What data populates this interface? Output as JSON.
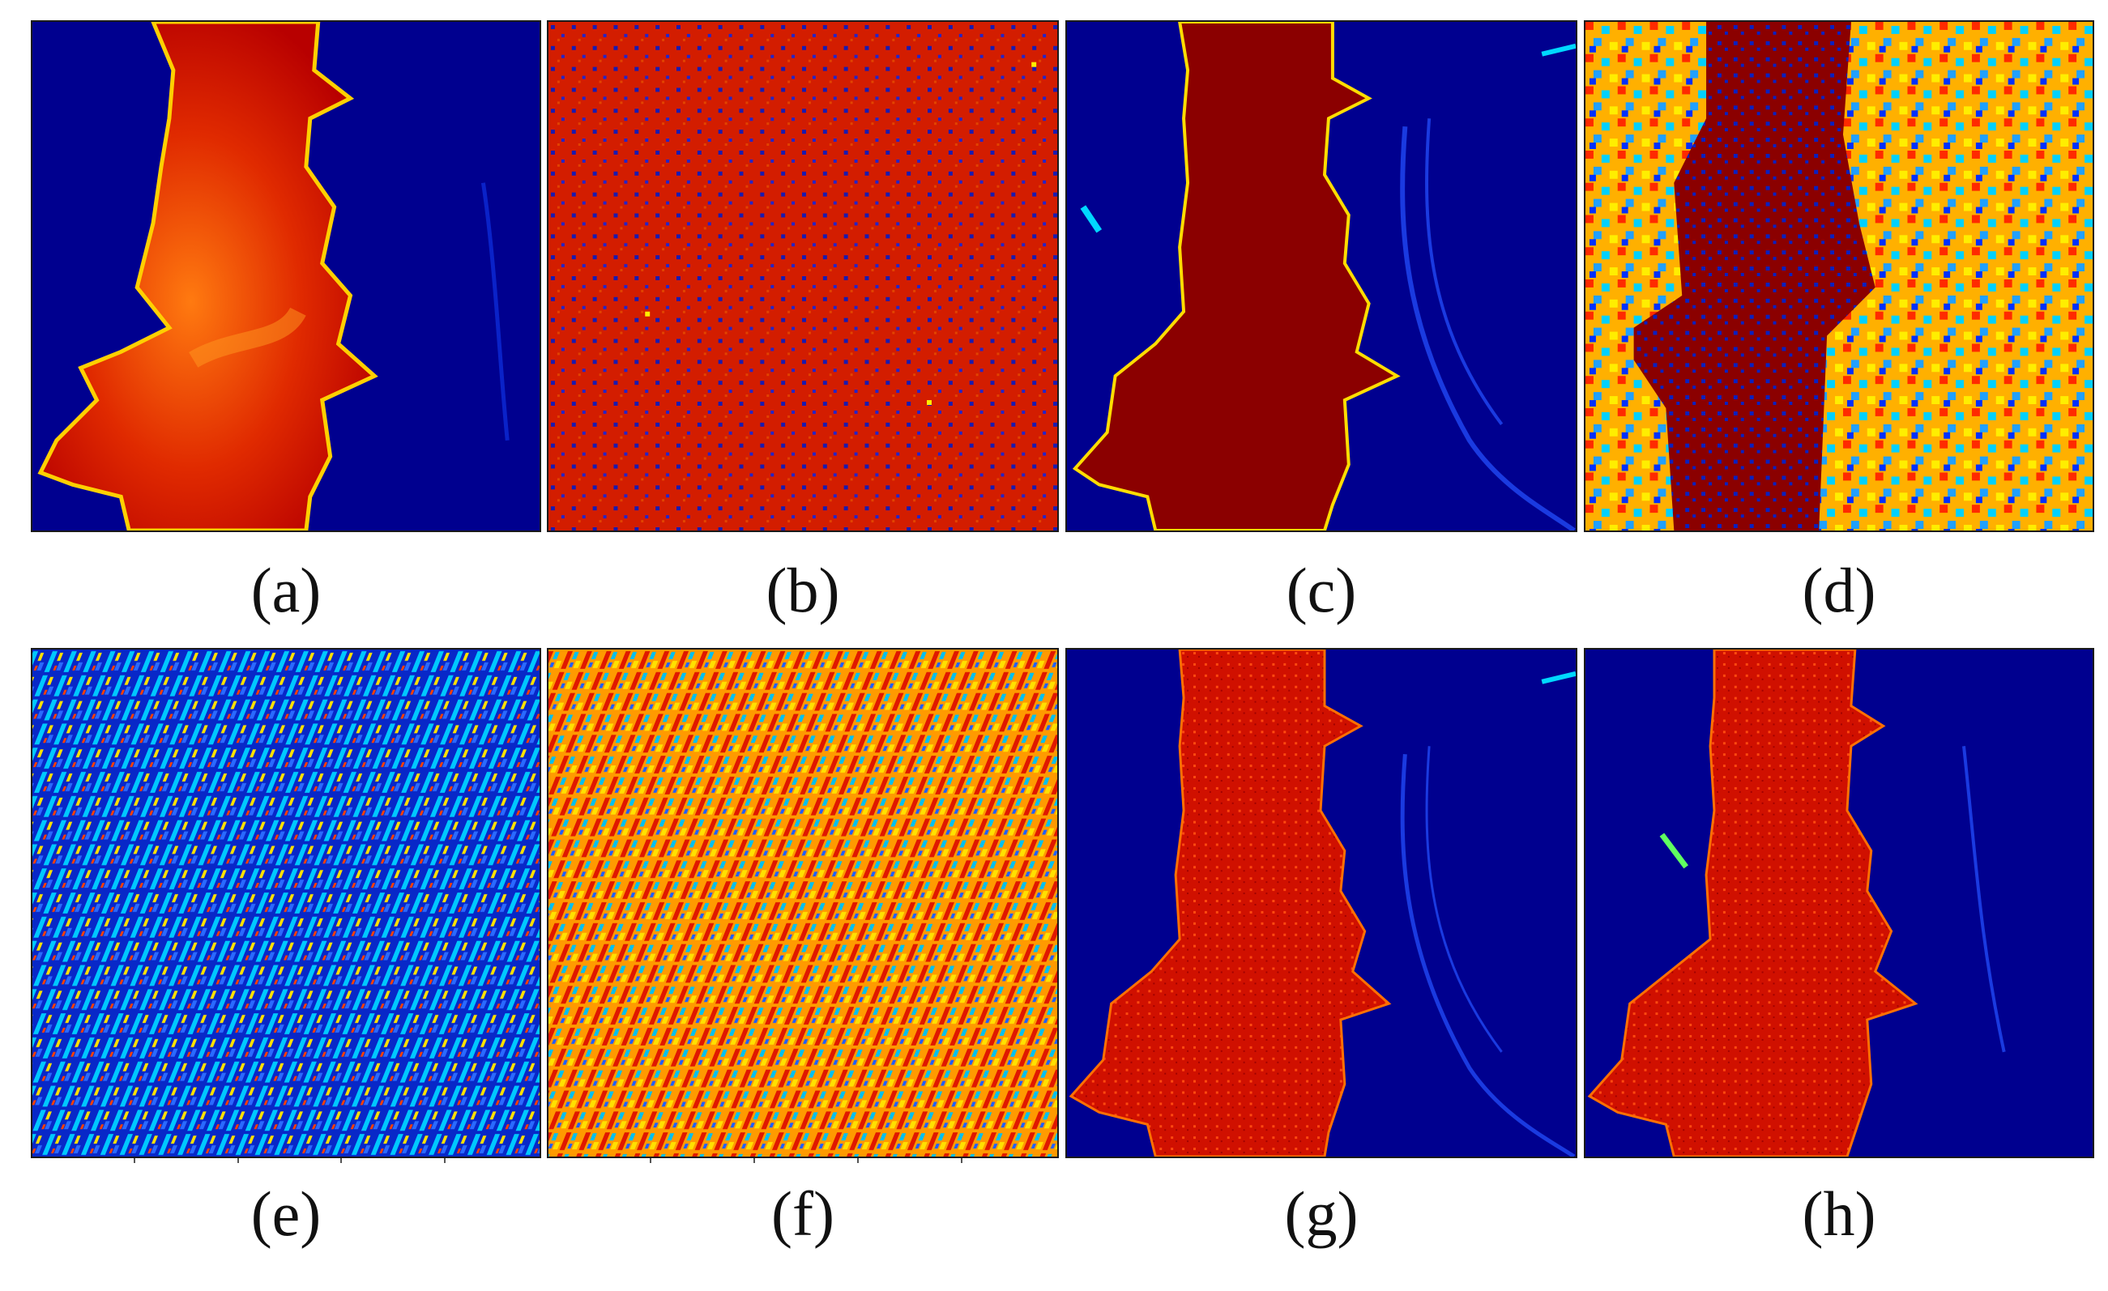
{
  "figure": {
    "captions": [
      "(a)",
      "(b)",
      "(c)",
      "(d)",
      "(e)",
      "(f)",
      "(g)",
      "(h)"
    ],
    "colormap": [
      "#00008b",
      "#0000ff",
      "#00ffff",
      "#ffff00",
      "#ff0000",
      "#8b0000"
    ],
    "panels": [
      {
        "id": "a",
        "content": "smooth red river segmentation map on dark blue background"
      },
      {
        "id": "b",
        "content": "uniform red noise field with scattered blue pixels"
      },
      {
        "id": "c",
        "content": "dark red river with sharp boundaries, faint blue tributaries"
      },
      {
        "id": "d",
        "content": "dark red river with noisy multicolor surroundings"
      },
      {
        "id": "e",
        "content": "blue diagonal striped texture with cyan and yellow speckles"
      },
      {
        "id": "f",
        "content": "orange and red diagonal striped texture"
      },
      {
        "id": "g",
        "content": "red river with speckle noise on dark blue background"
      },
      {
        "id": "h",
        "content": "red river with speckle noise on dark blue background"
      }
    ]
  }
}
